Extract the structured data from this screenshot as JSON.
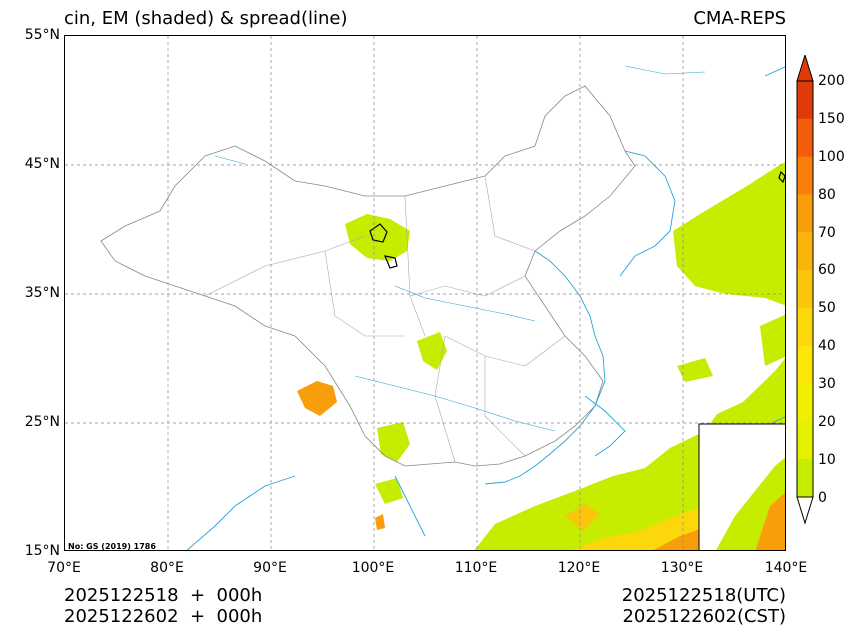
{
  "title": {
    "left": "cin, EM (shaded) & spread(line)",
    "right": "CMA-REPS"
  },
  "axes": {
    "y_ticks": [
      "55°N",
      "45°N",
      "35°N",
      "25°N",
      "15°N"
    ],
    "x_ticks": [
      "70°E",
      "80°E",
      "90°E",
      "100°E",
      "110°E",
      "120°E",
      "130°E",
      "140°E"
    ],
    "lon_range": [
      70,
      140
    ],
    "lat_range": [
      15,
      55
    ],
    "grid": "dashed"
  },
  "note": "No: GS (2019) 1786",
  "footer": {
    "left_line1": "2025122518  +  000h",
    "left_line2": "2025122602  +  000h",
    "right_line1": "2025122518(UTC)",
    "right_line2": "2025122602(CST)"
  },
  "colorbar": {
    "labels": [
      "200",
      "150",
      "100",
      "80",
      "70",
      "60",
      "50",
      "40",
      "30",
      "20",
      "10",
      "0"
    ],
    "colors": [
      "#e03a0a",
      "#f25c0a",
      "#f77f0a",
      "#f89e0a",
      "#fab40a",
      "#fbc60a",
      "#fcd70a",
      "#fde50a",
      "#f3ed00",
      "#e3f000",
      "#c6ec00"
    ]
  }
}
